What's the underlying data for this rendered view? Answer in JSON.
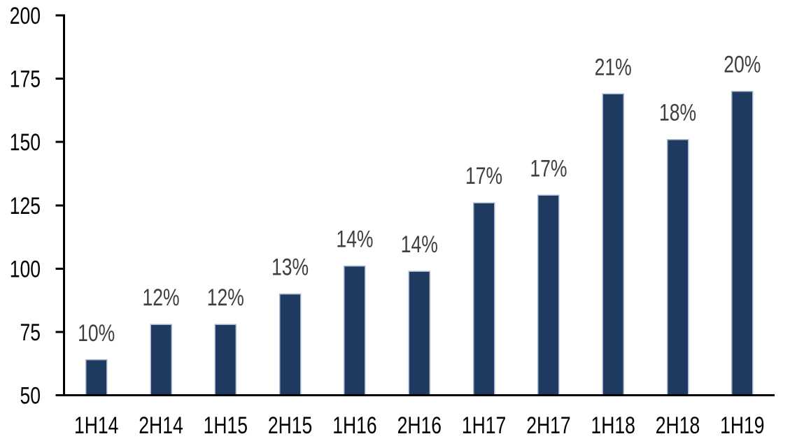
{
  "chart_data": {
    "type": "bar",
    "categories": [
      "1H14",
      "2H14",
      "1H15",
      "2H15",
      "1H16",
      "2H16",
      "1H17",
      "2H17",
      "1H18",
      "2H18",
      "1H19"
    ],
    "values": [
      64,
      78,
      78,
      90,
      101,
      99,
      126,
      129,
      169,
      151,
      170
    ],
    "bar_labels": [
      "10%",
      "12%",
      "12%",
      "13%",
      "14%",
      "14%",
      "17%",
      "17%",
      "21%",
      "18%",
      "20%"
    ],
    "ylim": [
      50,
      200
    ],
    "yticks": [
      50,
      75,
      100,
      125,
      150,
      175,
      200
    ],
    "ytick_labels": [
      "50",
      "75",
      "100",
      "125",
      "150",
      "175",
      "200"
    ],
    "grid": false,
    "legend": false,
    "bar_label_position": "above",
    "y_axis_side": "left",
    "colors": {
      "bar_fill": "#1F3A61",
      "bar_border": "#A9B6CD",
      "axis_line": "#000000",
      "axis_tick_label": "#000000",
      "bar_label": "#3F3F3F",
      "background": "#FFFFFF"
    }
  }
}
